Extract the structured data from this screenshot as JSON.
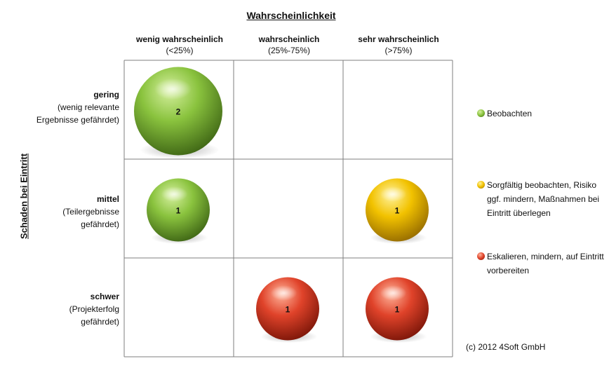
{
  "chart_data": {
    "type": "bubble-matrix",
    "title": "Wahrscheinlichkeit",
    "ylabel": "Schaden bei Eintritt",
    "columns": [
      {
        "label": "wenig wahrscheinlich",
        "sub": "(<25%)"
      },
      {
        "label": "wahrscheinlich",
        "sub": "(25%-75%)"
      },
      {
        "label": "sehr wahrscheinlich",
        "sub": "(>75%)"
      }
    ],
    "rows": [
      {
        "label": "gering",
        "sub": [
          "(wenig relevante",
          "Ergebnisse gefährdet)"
        ]
      },
      {
        "label": "mittel",
        "sub": [
          "(Teilergebnisse",
          "gefährdet)"
        ]
      },
      {
        "label": "schwer",
        "sub": [
          "(Projekterfolg",
          "gefährdet)"
        ]
      }
    ],
    "bubbles": [
      {
        "row": 0,
        "col": 0,
        "value": 2,
        "category": "green"
      },
      {
        "row": 1,
        "col": 0,
        "value": 1,
        "category": "green"
      },
      {
        "row": 1,
        "col": 2,
        "value": 1,
        "category": "yellow"
      },
      {
        "row": 2,
        "col": 1,
        "value": 1,
        "category": "red"
      },
      {
        "row": 2,
        "col": 2,
        "value": 1,
        "category": "red"
      }
    ],
    "legend": [
      {
        "category": "green",
        "text": "Beobachten"
      },
      {
        "category": "yellow",
        "text": "Sorgfältig beobachten, Risiko ggf. mindern, Maßnahmen bei Eintritt überlegen"
      },
      {
        "category": "red",
        "text": "Eskalieren, mindern, auf Eintritt vorbereiten"
      }
    ],
    "colors": {
      "green": {
        "light": "#d6f0a0",
        "base": "#8ac33e",
        "dark": "#3d6414"
      },
      "yellow": {
        "light": "#fff3a0",
        "base": "#f2c200",
        "dark": "#946a00"
      },
      "red": {
        "light": "#ffb59c",
        "base": "#e0432a",
        "dark": "#7a1508"
      }
    },
    "grid_color": "#7f7f7f",
    "legend_placement": "right"
  },
  "copyright": "(c) 2012 4Soft GmbH"
}
